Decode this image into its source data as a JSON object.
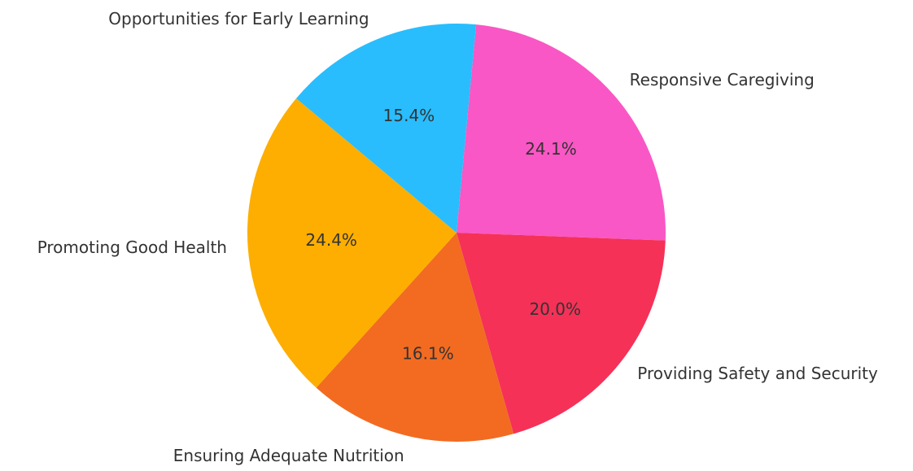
{
  "chart_data": {
    "type": "pie",
    "categories": [
      "Responsive Caregiving",
      "Providing Safety and Security",
      "Ensuring Adequate Nutrition",
      "Promoting Good Health",
      "Opportunities for Early Learning"
    ],
    "values": [
      24.1,
      20.0,
      16.1,
      24.4,
      15.4
    ],
    "value_labels": [
      "24.1%",
      "20.0%",
      "16.1%",
      "24.4%",
      "15.4%"
    ],
    "colors": [
      "#f957c5",
      "#f53157",
      "#f26b21",
      "#fdae00",
      "#29bdfd"
    ]
  }
}
